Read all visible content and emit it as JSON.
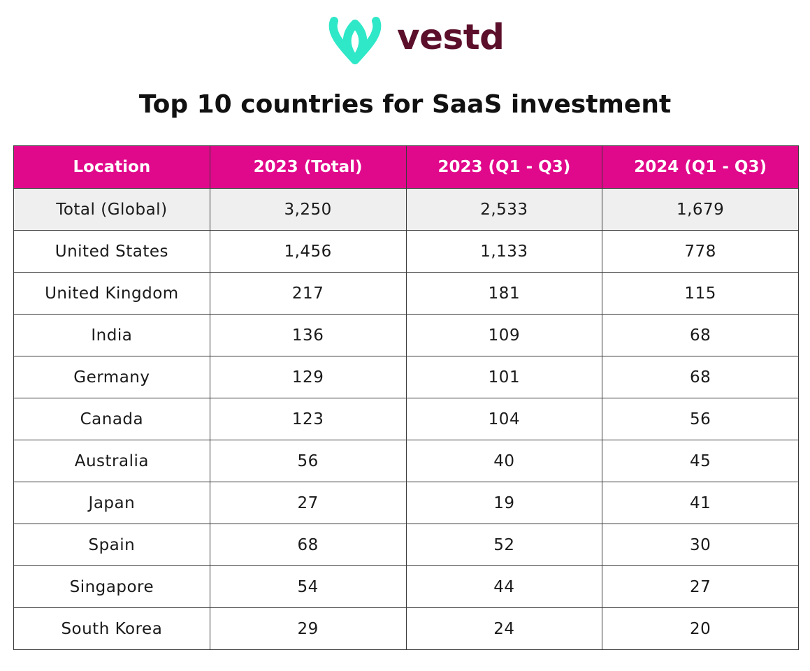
{
  "brand": {
    "name": "vestd",
    "logo_color": "#2ee8c8",
    "text_color": "#5b0f2b"
  },
  "chart_data": {
    "type": "table",
    "title": "Top 10 countries for SaaS investment",
    "columns": [
      "Location",
      "2023 (Total)",
      "2023 (Q1 - Q3)",
      "2024 (Q1 - Q3)"
    ],
    "rows": [
      [
        "Total (Global)",
        "3,250",
        "2,533",
        "1,679"
      ],
      [
        "United States",
        "1,456",
        "1,133",
        "778"
      ],
      [
        "United Kingdom",
        "217",
        "181",
        "115"
      ],
      [
        "India",
        "136",
        "109",
        "68"
      ],
      [
        "Germany",
        "129",
        "101",
        "68"
      ],
      [
        "Canada",
        "123",
        "104",
        "56"
      ],
      [
        "Australia",
        "56",
        "40",
        "45"
      ],
      [
        "Japan",
        "27",
        "19",
        "41"
      ],
      [
        "Spain",
        "68",
        "52",
        "30"
      ],
      [
        "Singapore",
        "54",
        "44",
        "27"
      ],
      [
        "South Korea",
        "29",
        "24",
        "20"
      ]
    ],
    "header_color": "#e0088b",
    "highlight_row_color": "#efefef"
  }
}
